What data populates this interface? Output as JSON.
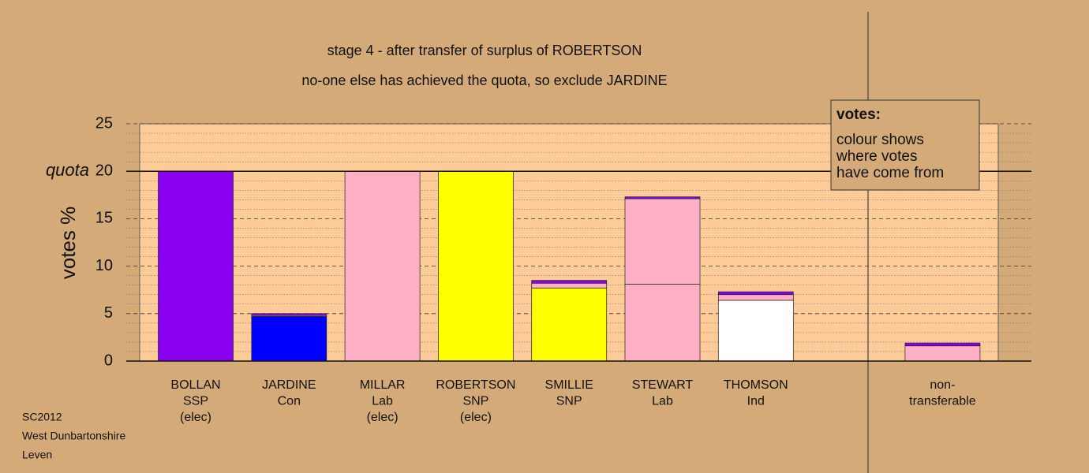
{
  "chart_data": {
    "type": "stacked-bar",
    "title": "stage 4 - after transfer of surplus of ROBERTSON",
    "subtitle": "no-one else has achieved the quota, so exclude JARDINE",
    "y_label": "votes %",
    "categories": [
      [
        "BOLLAN",
        "SSP",
        "(elec)"
      ],
      [
        "JARDINE",
        "Con"
      ],
      [
        "MILLAR",
        "Lab",
        "(elec)"
      ],
      [
        "ROBERTSON",
        "SNP",
        "(elec)"
      ],
      [
        "SMILLIE",
        "SNP"
      ],
      [
        "STEWART",
        "Lab"
      ],
      [
        "THOMSON",
        "Ind"
      ],
      null,
      [
        "non-",
        "transferable"
      ]
    ],
    "series": [
      {
        "color": "#ffffff",
        "values": [
          null,
          null,
          null,
          null,
          null,
          null,
          6.4,
          null,
          null
        ]
      },
      {
        "color": "#0000ff",
        "values": [
          null,
          4.7,
          null,
          null,
          null,
          null,
          null,
          null,
          null
        ]
      },
      {
        "color": "#ffff00",
        "values": [
          null,
          null,
          null,
          20,
          7.7,
          null,
          null,
          null,
          null
        ]
      },
      {
        "color": "#ffb0c4",
        "values": [
          null,
          0.1,
          20,
          null,
          0.5,
          8.1,
          0.6,
          null,
          1.6
        ]
      },
      {
        "color": "#ffb0c4",
        "values": [
          null,
          null,
          null,
          null,
          null,
          9.0,
          null,
          null,
          null
        ]
      },
      {
        "color": "#8800ee",
        "values": [
          20,
          0.2,
          null,
          null,
          0.3,
          0.2,
          0.3,
          null,
          0.3
        ]
      }
    ],
    "ylim": [
      0,
      25
    ],
    "yticks": [
      0,
      5,
      10,
      15,
      20,
      25
    ],
    "minor_yticks": [
      1,
      2,
      3,
      4,
      6,
      7,
      8,
      9,
      11,
      12,
      13,
      14,
      16,
      17,
      18,
      19,
      21,
      22,
      23,
      24
    ],
    "quota": {
      "label": "quota",
      "value": 20
    },
    "legend": {
      "title": "votes:",
      "lines": [
        "colour shows",
        "where votes",
        "have come from"
      ]
    }
  },
  "footer": [
    "SC2012",
    "West Dunbartonshire",
    "Leven"
  ]
}
